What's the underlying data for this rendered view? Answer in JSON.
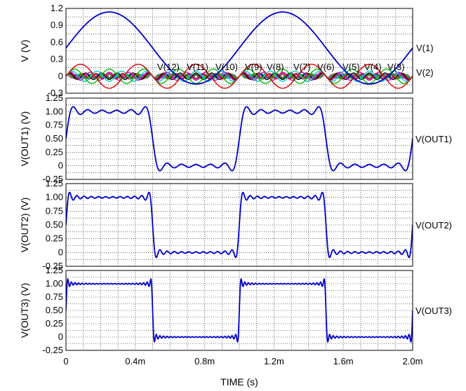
{
  "chart_data": {
    "x_axis": {
      "label": "TIME  (s)",
      "range": [
        0,
        0.002
      ],
      "ticks": [
        0,
        0.0004,
        0.0008,
        0.0012,
        0.0016,
        0.002
      ],
      "tick_labels": [
        "0",
        "0.4m",
        "0.8m",
        "1.2m",
        "1.6m",
        "2.0m"
      ]
    },
    "panels": [
      {
        "type": "line",
        "ylabel": "V  (V)",
        "ylim": [
          -0.3,
          1.2
        ],
        "yticks": [
          -0.3,
          0,
          0.3,
          0.6,
          0.9,
          1.2
        ],
        "ytick_labels": [
          "-0.3",
          "0",
          "0.3",
          "0.6",
          "0.9",
          "1.2"
        ],
        "grid": true,
        "series": [
          {
            "name": "V(1)",
            "color": "#0000cc",
            "kind": "fundamental",
            "offset": 0.5,
            "amplitude": 0.6366,
            "harmonic": 1
          },
          {
            "name": "V(2)",
            "color": "#dd0000",
            "kind": "harmonic",
            "offset": 0,
            "amplitude": 0.2122,
            "harmonic": 3
          },
          {
            "name": "V(3)",
            "color": "#00bb00",
            "kind": "harmonic",
            "offset": 0,
            "amplitude": 0.1273,
            "harmonic": 5
          },
          {
            "name": "V(4)",
            "color": "#00cccc",
            "kind": "harmonic",
            "offset": 0,
            "amplitude": 0.0909,
            "harmonic": 7
          },
          {
            "name": "V(5)",
            "color": "#cc00cc",
            "kind": "harmonic",
            "offset": 0,
            "amplitude": 0.0707,
            "harmonic": 9
          },
          {
            "name": "V(6)",
            "color": "#000000",
            "kind": "harmonic",
            "offset": 0,
            "amplitude": 0.0579,
            "harmonic": 11
          },
          {
            "name": "V(7)",
            "color": "#dd0000",
            "kind": "harmonic",
            "offset": 0,
            "amplitude": 0.049,
            "harmonic": 13
          },
          {
            "name": "V(8)",
            "color": "#00bb00",
            "kind": "harmonic",
            "offset": 0,
            "amplitude": 0.0424,
            "harmonic": 15
          },
          {
            "name": "V(9)",
            "color": "#00cccc",
            "kind": "harmonic",
            "offset": 0,
            "amplitude": 0.0374,
            "harmonic": 17
          },
          {
            "name": "V(10)",
            "color": "#cc00cc",
            "kind": "harmonic",
            "offset": 0,
            "amplitude": 0.0335,
            "harmonic": 19
          },
          {
            "name": "V(11)",
            "color": "#cc8800",
            "kind": "harmonic",
            "offset": 0,
            "amplitude": 0.0303,
            "harmonic": 21
          },
          {
            "name": "V(12)",
            "color": "#000000",
            "kind": "harmonic",
            "offset": 0,
            "amplitude": 0.0277,
            "harmonic": 23
          }
        ],
        "trace_labels": [
          "V(1)",
          "V(2)"
        ],
        "inline_labels": [
          "V(12)",
          "V(11)",
          "V(10)",
          "V(9)",
          "V(8)",
          "V(7)",
          "V(6)",
          "V(5)",
          "V(4)",
          "V(3)"
        ]
      },
      {
        "type": "line",
        "ylabel": "V(OUT1)  (V)",
        "ylim": [
          -0.25,
          1.25
        ],
        "yticks": [
          -0.25,
          0,
          0.25,
          0.5,
          0.75,
          1.0,
          1.25
        ],
        "ytick_labels": [
          "-0.25",
          "0",
          "0.25",
          "0.50",
          "0.75",
          "1.00",
          "1.25"
        ],
        "grid": true,
        "series": [
          {
            "name": "V(OUT1)",
            "color": "#0000cc",
            "kind": "square_partial_sum",
            "offset": 0.5,
            "harmonics": [
              1,
              3,
              5,
              7,
              9,
              11
            ]
          }
        ]
      },
      {
        "type": "line",
        "ylabel": "V(OUT2)  (V)",
        "ylim": [
          -0.25,
          1.25
        ],
        "yticks": [
          -0.25,
          0,
          0.25,
          0.5,
          0.75,
          1.0,
          1.25
        ],
        "ytick_labels": [
          "-0.25",
          "0",
          "0.25",
          "0.50",
          "0.75",
          "1.00",
          "1.25"
        ],
        "grid": true,
        "series": [
          {
            "name": "V(OUT2)",
            "color": "#0000cc",
            "kind": "square_partial_sum",
            "offset": 0.5,
            "harmonics": [
              1,
              3,
              5,
              7,
              9,
              11,
              13,
              15,
              17,
              19,
              21,
              23
            ]
          }
        ]
      },
      {
        "type": "line",
        "ylabel": "V(OUT3)  (V)",
        "ylim": [
          -0.25,
          1.25
        ],
        "yticks": [
          -0.25,
          0,
          0.25,
          0.5,
          0.75,
          1.0,
          1.25
        ],
        "ytick_labels": [
          "-0.25",
          "0",
          "0.25",
          "0.50",
          "0.75",
          "1.00",
          "1.25"
        ],
        "grid": true,
        "series": [
          {
            "name": "V(OUT3)",
            "color": "#0000cc",
            "kind": "square_partial_sum",
            "offset": 0.5,
            "harmonics": [
              1,
              3,
              5,
              7,
              9,
              11,
              13,
              15,
              17,
              19,
              21,
              23,
              25,
              27,
              29,
              31,
              33,
              35,
              37,
              39,
              41,
              43,
              45,
              47
            ]
          }
        ]
      }
    ],
    "fundamental_period_s": 0.001
  }
}
